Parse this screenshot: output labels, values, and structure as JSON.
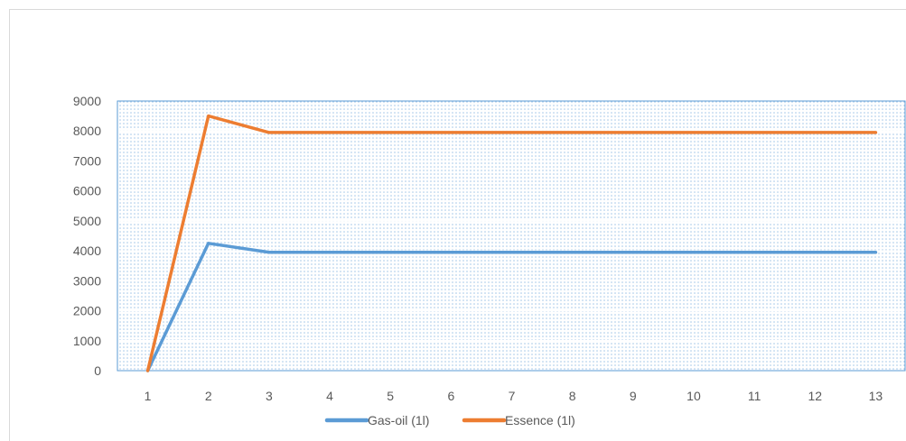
{
  "chart_data": {
    "type": "line",
    "title": "",
    "xlabel": "",
    "ylabel": "",
    "x": [
      1,
      2,
      3,
      4,
      5,
      6,
      7,
      8,
      9,
      10,
      11,
      12,
      13
    ],
    "ylim": [
      0,
      9000
    ],
    "yticks": [
      0,
      1000,
      2000,
      3000,
      4000,
      5000,
      6000,
      7000,
      8000,
      9000
    ],
    "grid": true,
    "legend_position": "bottom",
    "series": [
      {
        "name": "Gas-oil (1l)",
        "color": "#5b9bd5",
        "values": [
          0,
          4250,
          3950,
          3950,
          3950,
          3950,
          3950,
          3950,
          3950,
          3950,
          3950,
          3950,
          3950
        ]
      },
      {
        "name": "Essence (1l)",
        "color": "#ed7d31",
        "values": [
          0,
          8500,
          7950,
          7950,
          7950,
          7950,
          7950,
          7950,
          7950,
          7950,
          7950,
          7950,
          7950
        ]
      }
    ],
    "plot_background": "#9dc3e6",
    "plot_border_color": "#5b9bd5",
    "gridline_color": "#ffffff"
  }
}
